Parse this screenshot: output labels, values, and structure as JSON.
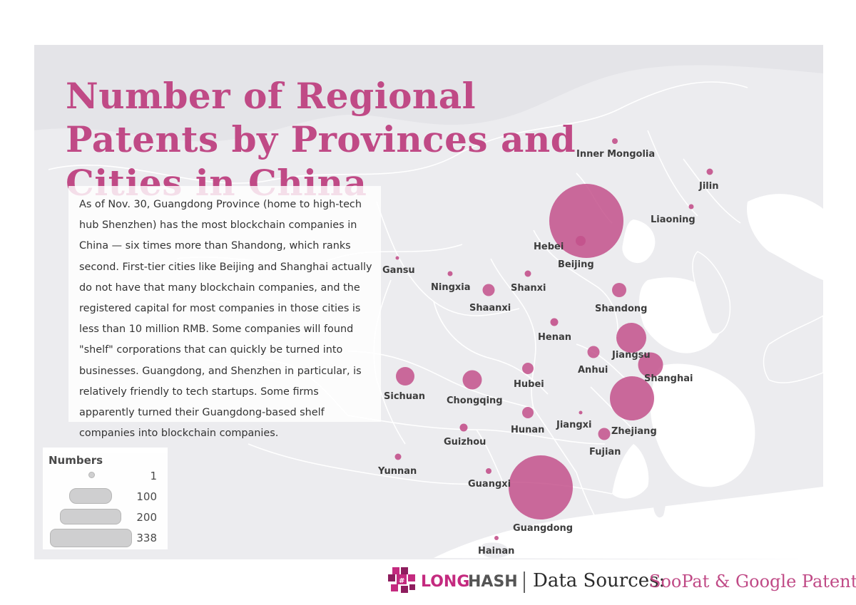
{
  "title": "Number of Regional Patents by Provinces and Cities in China",
  "description": "As of Nov. 30, Guangdong Province (home to high-tech hub Shenzhen) has the most blockchain companies in China — six times more than Shandong, which ranks second. First-tier cities like Beijing and Shanghai actually do not have that many blockchain companies, and the registered capital for most companies in those cities is less than 10 million RMB. Some companies will found \"shelf\" corporations that can quickly be turned into businesses. Guangdong, and Shenzhen in particular, is relatively friendly to tech startups. Some firms apparently turned their Guangdong-based shelf companies into blockchain companies.",
  "legend": {
    "title": "Numbers",
    "items": [
      "1",
      "100",
      "200",
      "338"
    ]
  },
  "colors": {
    "bubble": "#c3518b",
    "title": "#c04a86",
    "land": "#ececef",
    "sea": "#ffffff"
  },
  "regions": [
    {
      "name": "Inner Mongolia"
    },
    {
      "name": "Jilin"
    },
    {
      "name": "Liaoning"
    },
    {
      "name": "Hebei"
    },
    {
      "name": "Beijing"
    },
    {
      "name": "Gansu"
    },
    {
      "name": "Ningxia"
    },
    {
      "name": "Shanxi"
    },
    {
      "name": "Shaanxi"
    },
    {
      "name": "Shandong"
    },
    {
      "name": "Henan"
    },
    {
      "name": "Jiangsu"
    },
    {
      "name": "Anhui"
    },
    {
      "name": "Shanghai"
    },
    {
      "name": "Sichuan"
    },
    {
      "name": "Chongqing"
    },
    {
      "name": "Hubei"
    },
    {
      "name": "Zhejiang"
    },
    {
      "name": "Hunan"
    },
    {
      "name": "Jiangxi"
    },
    {
      "name": "Guizhou"
    },
    {
      "name": "Fujian"
    },
    {
      "name": "Yunnan"
    },
    {
      "name": "Guangxi"
    },
    {
      "name": "Guangdong"
    },
    {
      "name": "Hainan"
    }
  ],
  "footer": {
    "logo_long": "LONG",
    "logo_hash": "HASH",
    "source_label": "Data Sources:",
    "source_value": "SooPat & Google Patents"
  }
}
